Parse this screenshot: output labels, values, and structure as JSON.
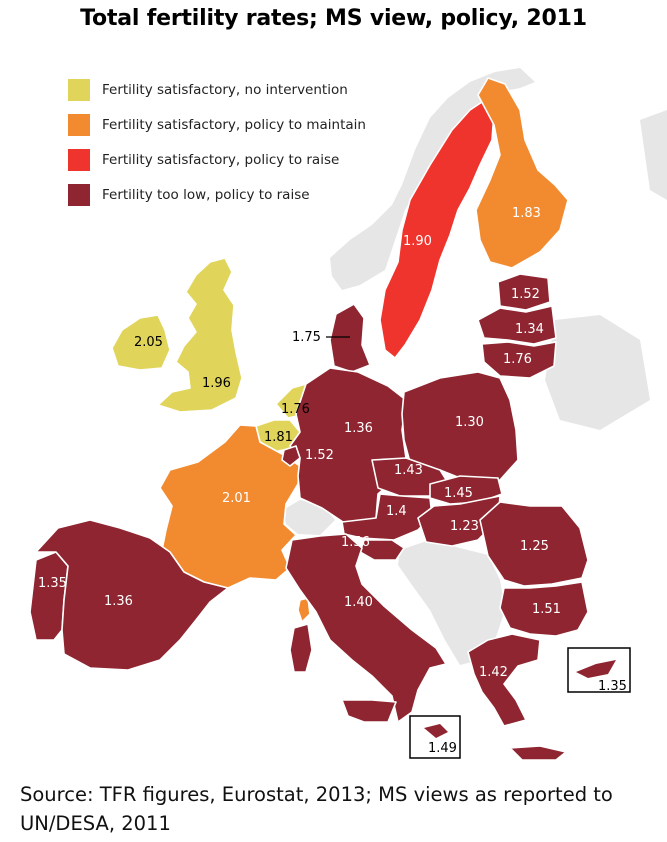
{
  "title": "Total fertility rates; MS view, policy, 2011",
  "colors": {
    "no_intervention": "#e0d55a",
    "maintain": "#f28a30",
    "raise": "#ee342c",
    "too_low": "#8e2530",
    "non_eu": "#e6e6e6"
  },
  "legend": [
    {
      "label": "Fertility satisfactory, no intervention",
      "category": "no_intervention"
    },
    {
      "label": "Fertility satisfactory, policy to maintain",
      "category": "maintain"
    },
    {
      "label": "Fertility satisfactory, policy to raise",
      "category": "raise"
    },
    {
      "label": "Fertility too low, policy to raise",
      "category": "too_low"
    }
  ],
  "countries": {
    "ireland": {
      "value": "2.05",
      "category": "no_intervention"
    },
    "uk": {
      "value": "1.96",
      "category": "no_intervention"
    },
    "netherlands": {
      "value": "1.76",
      "category": "no_intervention"
    },
    "belgium": {
      "value": "1.81",
      "category": "no_intervention"
    },
    "france": {
      "value": "2.01",
      "category": "maintain"
    },
    "finland": {
      "value": "1.83",
      "category": "maintain"
    },
    "sweden": {
      "value": "1.90",
      "category": "raise"
    },
    "denmark": {
      "value": "1.75",
      "category": "too_low"
    },
    "estonia": {
      "value": "1.52",
      "category": "too_low"
    },
    "latvia": {
      "value": "1.34",
      "category": "too_low"
    },
    "lithuania": {
      "value": "1.76",
      "category": "too_low"
    },
    "germany": {
      "value": "1.36",
      "category": "too_low"
    },
    "luxembourg": {
      "value": "1.52",
      "category": "too_low"
    },
    "poland": {
      "value": "1.30",
      "category": "too_low"
    },
    "czechia": {
      "value": "1.43",
      "category": "too_low"
    },
    "slovakia": {
      "value": "1.45",
      "category": "too_low"
    },
    "austria": {
      "value": "1.4",
      "category": "too_low"
    },
    "hungary": {
      "value": "1.23",
      "category": "too_low"
    },
    "slovenia": {
      "value": "1.56",
      "category": "too_low"
    },
    "romania": {
      "value": "1.25",
      "category": "too_low"
    },
    "bulgaria": {
      "value": "1.51",
      "category": "too_low"
    },
    "italy": {
      "value": "1.40",
      "category": "too_low"
    },
    "portugal": {
      "value": "1.35",
      "category": "too_low"
    },
    "spain": {
      "value": "1.36",
      "category": "too_low"
    },
    "greece": {
      "value": "1.42",
      "category": "too_low"
    },
    "malta": {
      "value": "1.49",
      "category": "too_low"
    },
    "cyprus": {
      "value": "1.35",
      "category": "too_low"
    }
  },
  "source": "Source: TFR figures, Eurostat, 2013; MS views as reported to UN/DESA, 2011"
}
